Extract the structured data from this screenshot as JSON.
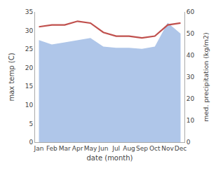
{
  "chart_data": {
    "type": "line",
    "categories": [
      "Jan",
      "Feb",
      "Mar",
      "Apr",
      "May",
      "Jun",
      "Jul",
      "Aug",
      "Sep",
      "Oct",
      "Nov",
      "Dec"
    ],
    "series": [
      {
        "type": "area",
        "axis": "y2",
        "color": "#afc6e9",
        "values": [
          47.0,
          45.0,
          46.0,
          47.0,
          48.0,
          44.0,
          43.5,
          43.5,
          43.0,
          44.0,
          55.0,
          50.0
        ]
      },
      {
        "type": "line",
        "color": "#c0504d",
        "values": [
          31.0,
          31.5,
          31.5,
          32.5,
          32.0,
          29.5,
          28.5,
          28.5,
          28.0,
          28.5,
          31.5,
          32.0
        ]
      }
    ],
    "xlabel": "date (month)",
    "ylabel": "max temp (C)",
    "y2label": "med. precipitation (kg/m2)",
    "ylim": [
      0,
      35
    ],
    "yticks": [
      0,
      5,
      10,
      15,
      20,
      25,
      30,
      35
    ],
    "y2lim": [
      0,
      60
    ],
    "y2ticks": [
      0,
      10,
      20,
      30,
      40,
      50,
      60
    ],
    "grid": false
  }
}
